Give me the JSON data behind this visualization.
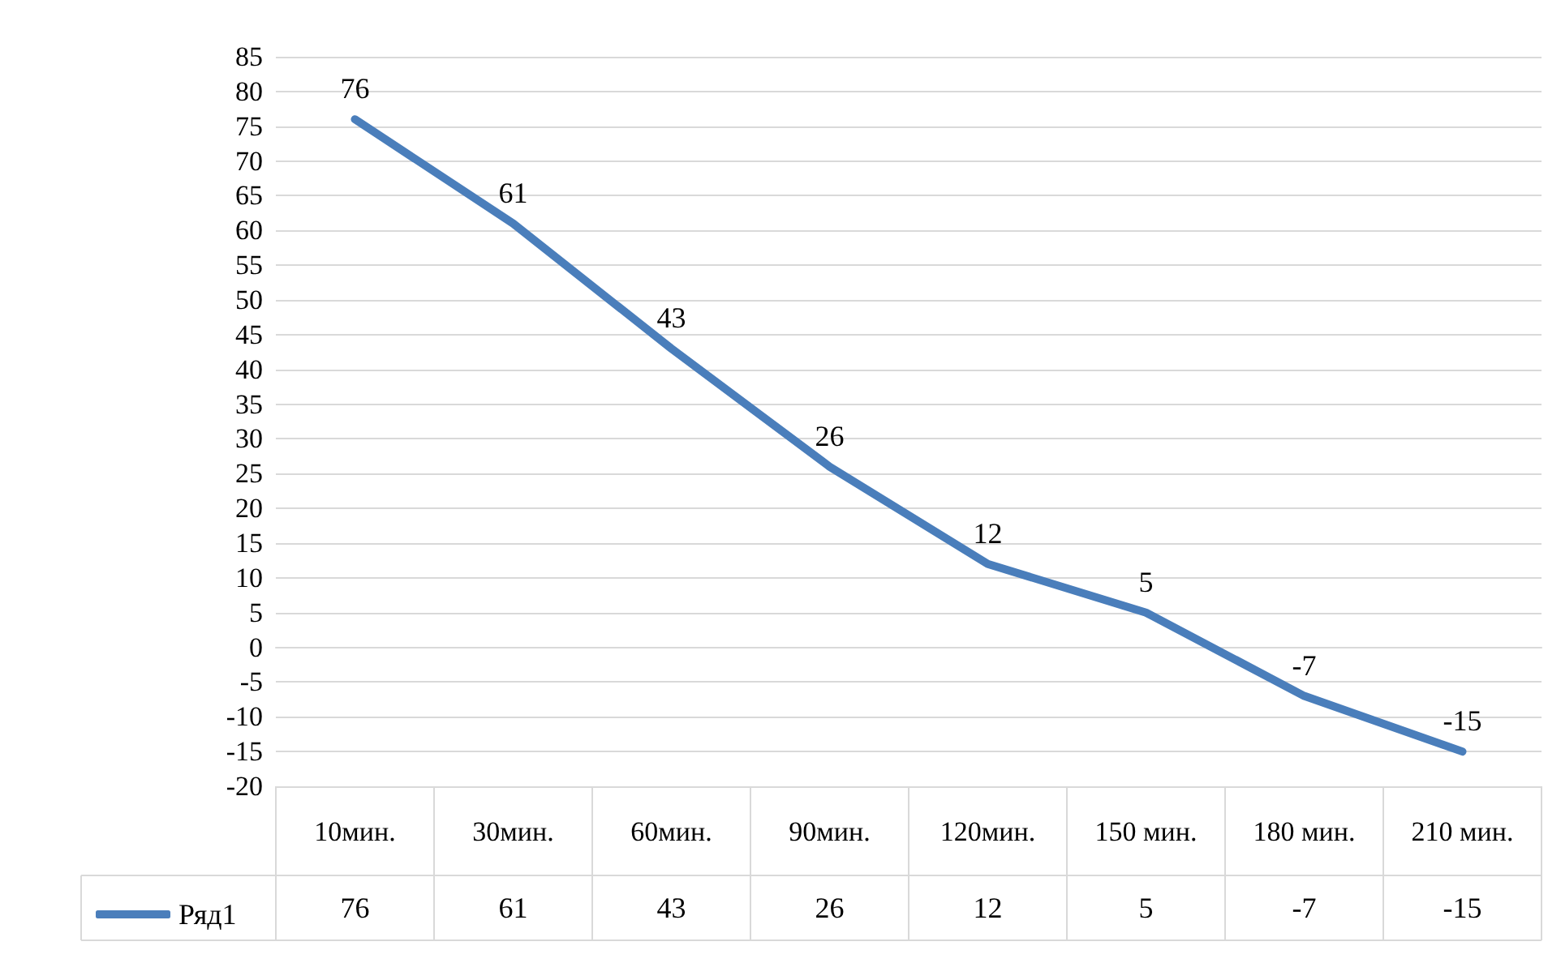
{
  "chart_data": {
    "type": "line",
    "categories": [
      "10мин.",
      "30мин.",
      "60мин.",
      "90мин.",
      "120мин.",
      "150 мин.",
      "180 мин.",
      "210 мин."
    ],
    "series": [
      {
        "name": "Ряд1",
        "color": "#4a7ebb",
        "values": [
          76,
          61,
          43,
          26,
          12,
          5,
          -7,
          -15
        ],
        "value_labels": [
          "76",
          "61",
          "43",
          "26",
          "12",
          "5",
          "-7",
          "-15"
        ]
      }
    ],
    "ylim": [
      -20,
      85
    ],
    "yticks": [
      -20,
      -15,
      -10,
      -5,
      0,
      5,
      10,
      15,
      20,
      25,
      30,
      35,
      40,
      45,
      50,
      55,
      60,
      65,
      70,
      75,
      80,
      85
    ],
    "grid": "y",
    "data_labels": true,
    "legend": "bottom left",
    "marker": "none",
    "line_style": "solid"
  }
}
